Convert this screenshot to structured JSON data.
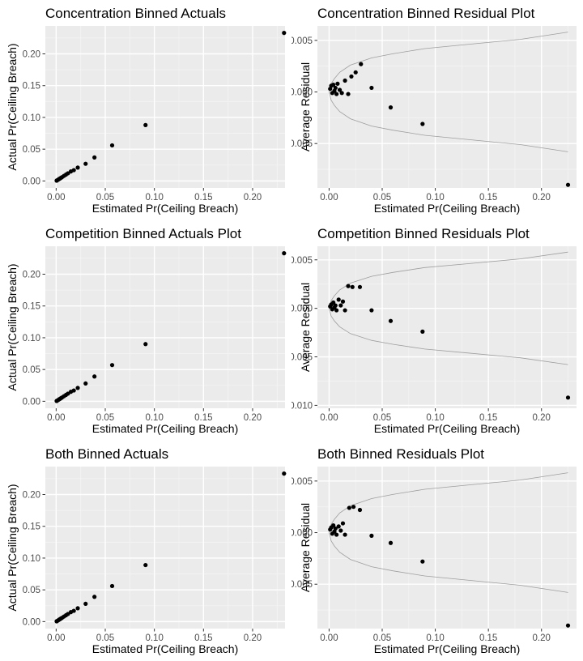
{
  "chart_data": [
    {
      "type": "scatter",
      "title": "Concentration Binned Actuals",
      "xlabel": "Estimated Pr(Ceiling Breach)",
      "ylabel": "Actual Pr(Ceiling Breach)",
      "xlim": [
        -0.011,
        0.233
      ],
      "ylim": [
        -0.011,
        0.244
      ],
      "xticks": [
        0.0,
        0.05,
        0.1,
        0.15,
        0.2
      ],
      "xtick_labels": [
        "0.00",
        "0.05",
        "0.10",
        "0.15",
        "0.20"
      ],
      "yticks": [
        0.0,
        0.05,
        0.1,
        0.15,
        0.2
      ],
      "ytick_labels": [
        "0.00",
        "0.05",
        "0.10",
        "0.15",
        "0.20"
      ],
      "grid": true,
      "points": [
        [
          0.0005,
          0.0005
        ],
        [
          0.001,
          0.001
        ],
        [
          0.002,
          0.002
        ],
        [
          0.003,
          0.003
        ],
        [
          0.004,
          0.004
        ],
        [
          0.005,
          0.005
        ],
        [
          0.006,
          0.006
        ],
        [
          0.008,
          0.008
        ],
        [
          0.01,
          0.01
        ],
        [
          0.012,
          0.012
        ],
        [
          0.015,
          0.015
        ],
        [
          0.018,
          0.017
        ],
        [
          0.022,
          0.021
        ],
        [
          0.03,
          0.027
        ],
        [
          0.039,
          0.037
        ],
        [
          0.057,
          0.056
        ],
        [
          0.091,
          0.088
        ],
        [
          0.232,
          0.233
        ]
      ]
    },
    {
      "type": "scatter",
      "title": "Concentration Binned Residual Plot",
      "xlabel": "Estimated Pr(Ceiling Breach)",
      "ylabel": "Average Residual",
      "xlim": [
        -0.011,
        0.233
      ],
      "ylim": [
        -0.0093,
        0.0064
      ],
      "xticks": [
        0.0,
        0.05,
        0.1,
        0.15,
        0.2
      ],
      "xtick_labels": [
        "0.00",
        "0.05",
        "0.10",
        "0.15",
        "0.20"
      ],
      "yticks": [
        -0.005,
        0.0,
        0.005
      ],
      "ytick_labels": [
        "-0.005",
        "0.000",
        "0.005"
      ],
      "grid": true,
      "points": [
        [
          0.001,
          0.0003
        ],
        [
          0.002,
          0.0006
        ],
        [
          0.003,
          -0.0001
        ],
        [
          0.004,
          0.0007
        ],
        [
          0.005,
          0.0001
        ],
        [
          0.006,
          0.0004
        ],
        [
          0.007,
          -0.0002
        ],
        [
          0.008,
          0.0008
        ],
        [
          0.01,
          0.0002
        ],
        [
          0.012,
          -0.0001
        ],
        [
          0.015,
          0.0011
        ],
        [
          0.018,
          -0.0002
        ],
        [
          0.021,
          0.0015
        ],
        [
          0.025,
          0.0019
        ],
        [
          0.03,
          0.0027
        ],
        [
          0.04,
          0.0004
        ],
        [
          0.058,
          -0.0015
        ],
        [
          0.088,
          -0.0031
        ],
        [
          0.225,
          -0.009
        ]
      ],
      "bounds": {
        "x": [
          0.0,
          0.002,
          0.005,
          0.01,
          0.02,
          0.04,
          0.06,
          0.09,
          0.13,
          0.18,
          0.225
        ],
        "upper": [
          0.0,
          0.0008,
          0.0013,
          0.0019,
          0.0026,
          0.0033,
          0.0037,
          0.0042,
          0.0046,
          0.0051,
          0.0058
        ],
        "lower": [
          0.0,
          -0.0008,
          -0.0013,
          -0.0019,
          -0.0026,
          -0.0033,
          -0.0037,
          -0.0042,
          -0.0046,
          -0.0051,
          -0.0058
        ]
      }
    },
    {
      "type": "scatter",
      "title": "Competition Binned Actuals Plot",
      "xlabel": "Estimated Pr(Ceiling Breach)",
      "ylabel": "Actual Pr(Ceiling Breach)",
      "xlim": [
        -0.011,
        0.233
      ],
      "ylim": [
        -0.011,
        0.244
      ],
      "xticks": [
        0.0,
        0.05,
        0.1,
        0.15,
        0.2
      ],
      "xtick_labels": [
        "0.00",
        "0.05",
        "0.10",
        "0.15",
        "0.20"
      ],
      "yticks": [
        0.0,
        0.05,
        0.1,
        0.15,
        0.2
      ],
      "ytick_labels": [
        "0.00",
        "0.05",
        "0.10",
        "0.15",
        "0.20"
      ],
      "grid": true,
      "points": [
        [
          0.0005,
          0.0005
        ],
        [
          0.001,
          0.001
        ],
        [
          0.002,
          0.002
        ],
        [
          0.003,
          0.003
        ],
        [
          0.004,
          0.004
        ],
        [
          0.005,
          0.005
        ],
        [
          0.006,
          0.006
        ],
        [
          0.008,
          0.008
        ],
        [
          0.01,
          0.01
        ],
        [
          0.012,
          0.012
        ],
        [
          0.015,
          0.015
        ],
        [
          0.018,
          0.017
        ],
        [
          0.022,
          0.021
        ],
        [
          0.03,
          0.028
        ],
        [
          0.039,
          0.039
        ],
        [
          0.057,
          0.057
        ],
        [
          0.091,
          0.09
        ],
        [
          0.232,
          0.233
        ]
      ]
    },
    {
      "type": "scatter",
      "title": "Competition Binned Residuals Plot",
      "xlabel": "Estimated Pr(Ceiling Breach)",
      "ylabel": "Average Residual",
      "xlim": [
        -0.011,
        0.233
      ],
      "ylim": [
        -0.0103,
        0.0064
      ],
      "xticks": [
        0.0,
        0.05,
        0.1,
        0.15,
        0.2
      ],
      "xtick_labels": [
        "0.00",
        "0.05",
        "0.10",
        "0.15",
        "0.20"
      ],
      "yticks": [
        -0.01,
        -0.005,
        0.0,
        0.005
      ],
      "ytick_labels": [
        "-0.010",
        "-0.005",
        "0.000",
        "0.005"
      ],
      "grid": true,
      "points": [
        [
          0.001,
          0.0002
        ],
        [
          0.002,
          0.0004
        ],
        [
          0.003,
          -0.0001
        ],
        [
          0.004,
          0.0006
        ],
        [
          0.005,
          0.0001
        ],
        [
          0.006,
          0.0003
        ],
        [
          0.007,
          -0.0002
        ],
        [
          0.009,
          0.0009
        ],
        [
          0.011,
          0.0003
        ],
        [
          0.013,
          0.0007
        ],
        [
          0.015,
          -0.0002
        ],
        [
          0.018,
          0.0023
        ],
        [
          0.022,
          0.0022
        ],
        [
          0.029,
          0.0022
        ],
        [
          0.04,
          -0.0002
        ],
        [
          0.058,
          -0.0013
        ],
        [
          0.088,
          -0.0024
        ],
        [
          0.225,
          -0.0092
        ]
      ],
      "bounds": {
        "x": [
          0.0,
          0.002,
          0.005,
          0.01,
          0.02,
          0.04,
          0.06,
          0.09,
          0.13,
          0.18,
          0.225
        ],
        "upper": [
          0.0,
          0.0008,
          0.0013,
          0.0019,
          0.0026,
          0.0033,
          0.0037,
          0.0042,
          0.0046,
          0.0051,
          0.0058
        ],
        "lower": [
          0.0,
          -0.0008,
          -0.0013,
          -0.0019,
          -0.0026,
          -0.0033,
          -0.0037,
          -0.0042,
          -0.0046,
          -0.0051,
          -0.0058
        ]
      }
    },
    {
      "type": "scatter",
      "title": "Both Binned Actuals",
      "xlabel": "Estimated Pr(Ceiling Breach)",
      "ylabel": "Actual Pr(Ceiling Breach)",
      "xlim": [
        -0.011,
        0.233
      ],
      "ylim": [
        -0.011,
        0.244
      ],
      "xticks": [
        0.0,
        0.05,
        0.1,
        0.15,
        0.2
      ],
      "xtick_labels": [
        "0.00",
        "0.05",
        "0.10",
        "0.15",
        "0.20"
      ],
      "yticks": [
        0.0,
        0.05,
        0.1,
        0.15,
        0.2
      ],
      "ytick_labels": [
        "0.00",
        "0.05",
        "0.10",
        "0.15",
        "0.20"
      ],
      "grid": true,
      "points": [
        [
          0.0005,
          0.0005
        ],
        [
          0.001,
          0.001
        ],
        [
          0.002,
          0.002
        ],
        [
          0.003,
          0.003
        ],
        [
          0.004,
          0.004
        ],
        [
          0.005,
          0.005
        ],
        [
          0.006,
          0.006
        ],
        [
          0.008,
          0.008
        ],
        [
          0.01,
          0.01
        ],
        [
          0.012,
          0.012
        ],
        [
          0.015,
          0.015
        ],
        [
          0.018,
          0.017
        ],
        [
          0.022,
          0.021
        ],
        [
          0.03,
          0.028
        ],
        [
          0.039,
          0.039
        ],
        [
          0.057,
          0.056
        ],
        [
          0.091,
          0.089
        ],
        [
          0.232,
          0.233
        ]
      ]
    },
    {
      "type": "scatter",
      "title": "Both Binned Residuals Plot",
      "xlabel": "Estimated Pr(Ceiling Breach)",
      "ylabel": "Average Residual",
      "xlim": [
        -0.011,
        0.233
      ],
      "ylim": [
        -0.0093,
        0.0064
      ],
      "xticks": [
        0.0,
        0.05,
        0.1,
        0.15,
        0.2
      ],
      "xtick_labels": [
        "0.00",
        "0.05",
        "0.10",
        "0.15",
        "0.20"
      ],
      "yticks": [
        -0.005,
        0.0,
        0.005
      ],
      "ytick_labels": [
        "-0.005",
        "0.000",
        "0.005"
      ],
      "grid": true,
      "points": [
        [
          0.001,
          0.0003
        ],
        [
          0.002,
          0.0005
        ],
        [
          0.003,
          -0.0001
        ],
        [
          0.004,
          0.0007
        ],
        [
          0.005,
          0.0001
        ],
        [
          0.006,
          0.0004
        ],
        [
          0.007,
          -0.0002
        ],
        [
          0.009,
          0.0006
        ],
        [
          0.011,
          0.0002
        ],
        [
          0.013,
          0.0009
        ],
        [
          0.015,
          -0.0002
        ],
        [
          0.019,
          0.0024
        ],
        [
          0.023,
          0.0025
        ],
        [
          0.029,
          0.0022
        ],
        [
          0.04,
          -0.0003
        ],
        [
          0.058,
          -0.001
        ],
        [
          0.088,
          -0.0028
        ],
        [
          0.225,
          -0.009
        ]
      ],
      "bounds": {
        "x": [
          0.0,
          0.002,
          0.005,
          0.01,
          0.02,
          0.04,
          0.06,
          0.09,
          0.13,
          0.18,
          0.225
        ],
        "upper": [
          0.0,
          0.0008,
          0.0013,
          0.0019,
          0.0026,
          0.0033,
          0.0037,
          0.0042,
          0.0046,
          0.0051,
          0.0058
        ],
        "lower": [
          0.0,
          -0.0008,
          -0.0013,
          -0.0019,
          -0.0026,
          -0.0033,
          -0.0037,
          -0.0042,
          -0.0046,
          -0.0051,
          -0.0058
        ]
      }
    }
  ],
  "colors": {
    "panel_background": "#ebebeb",
    "grid_major": "#ffffff",
    "grid_minor": "#f4f4f4",
    "point": "#000000",
    "bound_line": "#9e9e9e",
    "tick_text": "#4d4d4d",
    "axis_tick": "#333333"
  }
}
